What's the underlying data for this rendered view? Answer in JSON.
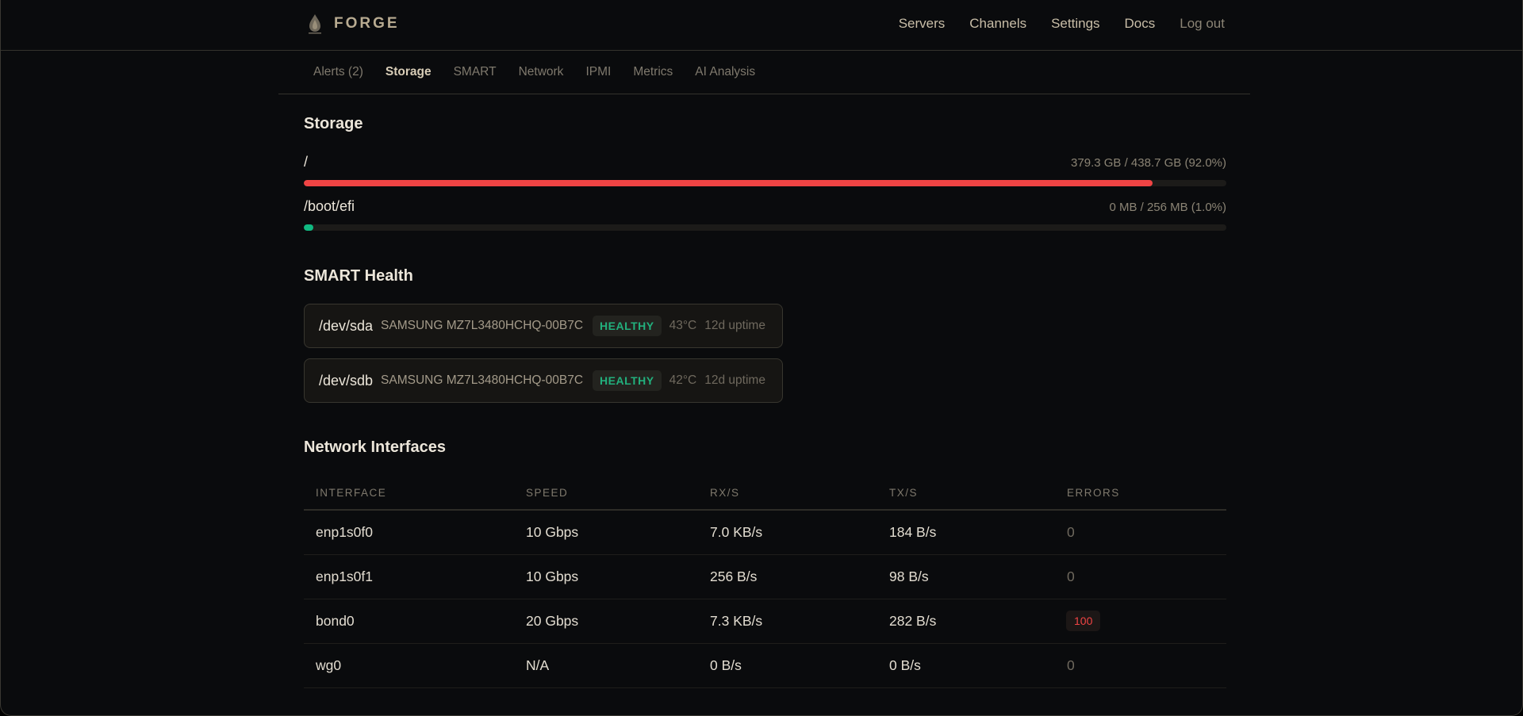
{
  "app": {
    "name": "FORGE",
    "logo_icon": "flame-drop-icon"
  },
  "nav": {
    "items": [
      "Servers",
      "Channels",
      "Settings",
      "Docs"
    ],
    "logout": "Log out"
  },
  "subtabs": {
    "items": [
      "Alerts (2)",
      "Storage",
      "SMART",
      "Network",
      "IPMI",
      "Metrics",
      "AI Analysis"
    ],
    "active": "Storage"
  },
  "storage": {
    "title": "Storage",
    "disks": [
      {
        "mount": "/",
        "usage": "379.3 GB / 438.7 GB (92.0%)",
        "percent": 92.0,
        "color": "#ef4444"
      },
      {
        "mount": "/boot/efi",
        "usage": "0 MB / 256 MB (1.0%)",
        "percent": 1.0,
        "color": "#10b981"
      }
    ]
  },
  "smart": {
    "title": "SMART Health",
    "devices": [
      {
        "device": "/dev/sda",
        "model": "SAMSUNG MZ7L3480HCHQ-00B7C",
        "status": "HEALTHY",
        "temp": "43°C",
        "uptime": "12d uptime"
      },
      {
        "device": "/dev/sdb",
        "model": "SAMSUNG MZ7L3480HCHQ-00B7C",
        "status": "HEALTHY",
        "temp": "42°C",
        "uptime": "12d uptime"
      }
    ]
  },
  "network": {
    "title": "Network Interfaces",
    "columns": [
      "INTERFACE",
      "SPEED",
      "RX/S",
      "TX/S",
      "ERRORS"
    ],
    "rows": [
      [
        "enp1s0f0",
        "10 Gbps",
        "7.0 KB/s",
        "184 B/s",
        "0"
      ],
      [
        "enp1s0f1",
        "10 Gbps",
        "256 B/s",
        "98 B/s",
        "0"
      ],
      [
        "bond0",
        "20 Gbps",
        "7.3 KB/s",
        "282 B/s",
        "100"
      ],
      [
        "wg0",
        "N/A",
        "0 B/s",
        "0 B/s",
        "0"
      ]
    ]
  },
  "colors": {
    "danger": "#ef4444",
    "ok": "#10b981",
    "healthy": "#22b07d"
  }
}
